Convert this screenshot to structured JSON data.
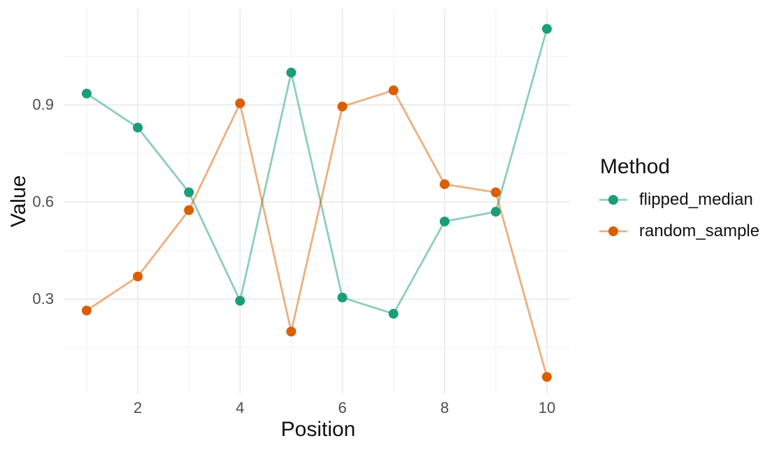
{
  "chart_data": {
    "type": "line",
    "title": "",
    "xlabel": "Position",
    "ylabel": "Value",
    "legend_title": "Method",
    "legend_position": "right",
    "x": [
      1,
      2,
      3,
      4,
      5,
      6,
      7,
      8,
      9,
      10
    ],
    "series": [
      {
        "name": "flipped_median",
        "color": "#1B9E77",
        "values": [
          0.935,
          0.83,
          0.63,
          0.295,
          1.0,
          0.305,
          0.255,
          0.54,
          0.57,
          1.135
        ]
      },
      {
        "name": "random_sample",
        "color": "#D95F02",
        "values": [
          0.265,
          0.37,
          0.575,
          0.905,
          0.2,
          0.895,
          0.945,
          0.655,
          0.63,
          0.06
        ]
      }
    ],
    "xlim": [
      0.55,
      10.45
    ],
    "ylim": [
      0.009,
      1.196
    ],
    "x_ticks": {
      "values": [
        2,
        4,
        6,
        8,
        10
      ],
      "labels": [
        "2",
        "4",
        "6",
        "8",
        "10"
      ],
      "minor": [
        1,
        3,
        5,
        7,
        9
      ]
    },
    "y_ticks": {
      "values": [
        0.3,
        0.6,
        0.9
      ],
      "labels": [
        "0.3",
        "0.6",
        "0.9"
      ],
      "minor": [
        0.15,
        0.45,
        0.75,
        1.05
      ]
    },
    "grid": true,
    "style": {
      "background": "#ffffff",
      "grid_major_color": "#e8e8e8",
      "grid_minor_color": "#f1f1f1",
      "tick_label_color": "#4d4d4d",
      "axis_title_color": "#111111",
      "line_opacity": 0.5,
      "line_width": 2.8,
      "point_radius": 7
    }
  }
}
